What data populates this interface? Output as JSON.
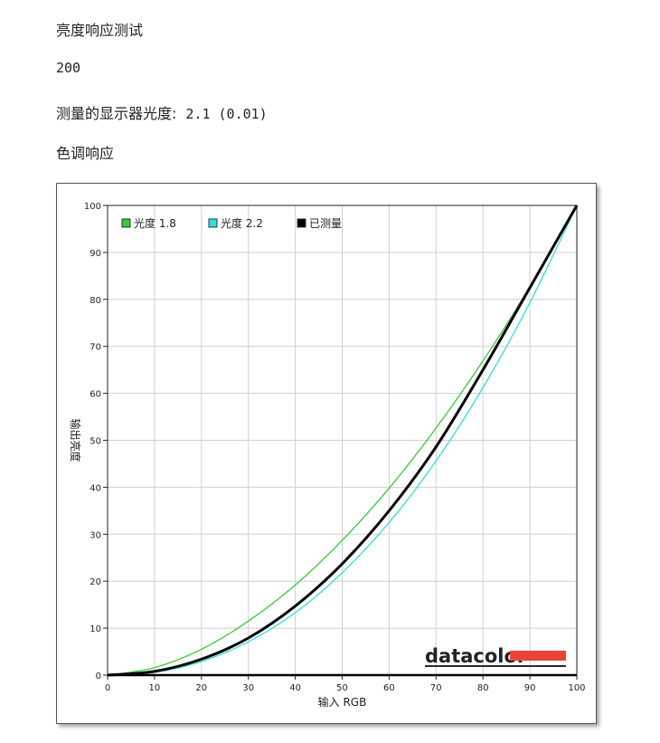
{
  "header": {
    "title": "亮度响应测试",
    "value": "200",
    "gamma_label": "测量的显示器光度:",
    "gamma_value": "2.1 (0.01)",
    "section": "色调响应"
  },
  "chart_data": {
    "type": "line",
    "xlabel": "输入 RGB",
    "ylabel": "输出亮度",
    "xlim": [
      0,
      100
    ],
    "ylim": [
      0,
      100
    ],
    "x_ticks": [
      0,
      10,
      20,
      30,
      40,
      50,
      60,
      70,
      80,
      90,
      100
    ],
    "y_ticks": [
      0,
      10,
      20,
      30,
      40,
      50,
      60,
      70,
      80,
      90,
      100
    ],
    "grid": true,
    "legend_position": "top-left",
    "x": [
      0,
      10,
      20,
      30,
      40,
      50,
      60,
      70,
      80,
      90,
      100
    ],
    "series": [
      {
        "name": "光度 1.8",
        "color": "#33cc33",
        "values": [
          0,
          1.6,
          5.5,
          11.5,
          19.2,
          28.7,
          39.8,
          52.6,
          66.9,
          82.7,
          100
        ]
      },
      {
        "name": "光度 2.2",
        "color": "#33dddd",
        "values": [
          0,
          0.6,
          2.9,
          7.1,
          13.3,
          21.8,
          32.5,
          45.6,
          61.2,
          79.3,
          100
        ]
      },
      {
        "name": "已测量",
        "color": "#000000",
        "values": [
          0,
          0.8,
          3.4,
          7.9,
          14.7,
          23.7,
          35.0,
          48.6,
          65.0,
          82.5,
          100
        ]
      }
    ],
    "brand": "datacolor",
    "brand_color": "#e8443a"
  }
}
